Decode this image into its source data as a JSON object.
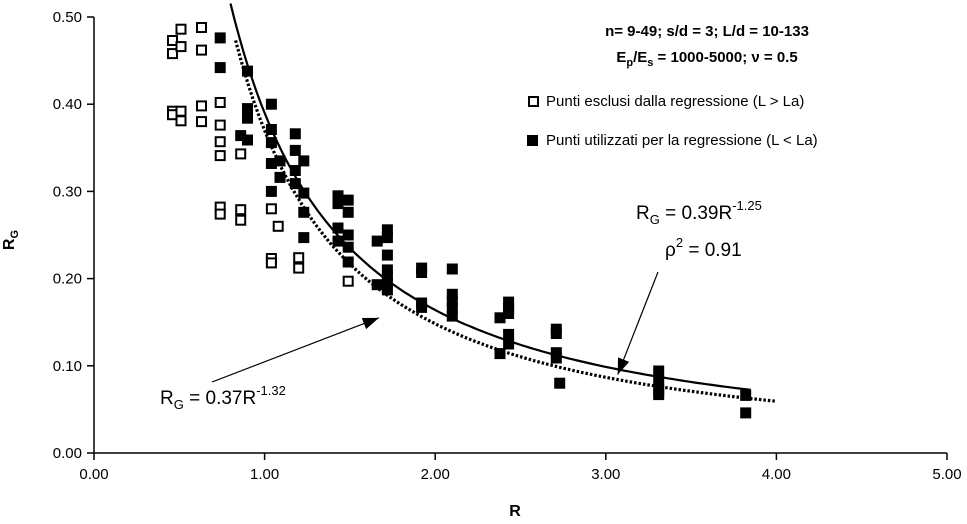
{
  "chart_data": {
    "type": "scatter",
    "title": "",
    "xlabel": "R",
    "ylabel": "R_G",
    "xlim": [
      0.0,
      5.0
    ],
    "ylim": [
      0.0,
      0.5
    ],
    "x_tick_labels": [
      "0.00",
      "1.00",
      "2.00",
      "3.00",
      "4.00",
      "5.00"
    ],
    "y_tick_labels": [
      "0.00",
      "0.10",
      "0.20",
      "0.30",
      "0.40",
      "0.50"
    ],
    "grid": false,
    "legend_position": "top-right",
    "annotation_params": "n= 9-49; s/d = 3; L/d = 10-133",
    "annotation_ratio": "E_p/E_s = 1000-5000; ν = 0.5",
    "series": [
      {
        "name": "Punti esclusi dalla regressione (L > La)",
        "marker": "open-square",
        "points": [
          [
            0.46,
            0.473
          ],
          [
            0.46,
            0.458
          ],
          [
            0.46,
            0.392
          ],
          [
            0.46,
            0.388
          ],
          [
            0.51,
            0.486
          ],
          [
            0.51,
            0.466
          ],
          [
            0.51,
            0.392
          ],
          [
            0.51,
            0.381
          ],
          [
            0.63,
            0.488
          ],
          [
            0.63,
            0.462
          ],
          [
            0.63,
            0.398
          ],
          [
            0.63,
            0.38
          ],
          [
            0.74,
            0.402
          ],
          [
            0.74,
            0.376
          ],
          [
            0.74,
            0.357
          ],
          [
            0.74,
            0.341
          ],
          [
            0.74,
            0.282
          ],
          [
            0.74,
            0.274
          ],
          [
            0.86,
            0.343
          ],
          [
            0.86,
            0.279
          ],
          [
            0.86,
            0.267
          ],
          [
            1.04,
            0.28
          ],
          [
            1.04,
            0.223
          ],
          [
            1.04,
            0.218
          ],
          [
            1.08,
            0.26
          ],
          [
            1.2,
            0.224
          ],
          [
            1.2,
            0.212
          ],
          [
            1.49,
            0.197
          ]
        ]
      },
      {
        "name": "Punti utilizzati per la regressione (L < La)",
        "marker": "filled-square",
        "points": [
          [
            0.74,
            0.476
          ],
          [
            0.74,
            0.442
          ],
          [
            0.9,
            0.438
          ],
          [
            0.9,
            0.395
          ],
          [
            0.9,
            0.384
          ],
          [
            0.9,
            0.359
          ],
          [
            0.86,
            0.364
          ],
          [
            1.04,
            0.4
          ],
          [
            1.04,
            0.371
          ],
          [
            1.04,
            0.356
          ],
          [
            1.04,
            0.332
          ],
          [
            1.04,
            0.3
          ],
          [
            1.09,
            0.335
          ],
          [
            1.09,
            0.316
          ],
          [
            1.18,
            0.366
          ],
          [
            1.18,
            0.347
          ],
          [
            1.18,
            0.324
          ],
          [
            1.18,
            0.309
          ],
          [
            1.23,
            0.335
          ],
          [
            1.23,
            0.298
          ],
          [
            1.23,
            0.276
          ],
          [
            1.23,
            0.247
          ],
          [
            1.43,
            0.295
          ],
          [
            1.43,
            0.286
          ],
          [
            1.43,
            0.258
          ],
          [
            1.43,
            0.243
          ],
          [
            1.49,
            0.29
          ],
          [
            1.49,
            0.276
          ],
          [
            1.49,
            0.25
          ],
          [
            1.49,
            0.236
          ],
          [
            1.49,
            0.219
          ],
          [
            1.66,
            0.243
          ],
          [
            1.66,
            0.193
          ],
          [
            1.72,
            0.256
          ],
          [
            1.72,
            0.247
          ],
          [
            1.72,
            0.227
          ],
          [
            1.72,
            0.21
          ],
          [
            1.72,
            0.203
          ],
          [
            1.72,
            0.195
          ],
          [
            1.72,
            0.187
          ],
          [
            1.92,
            0.212
          ],
          [
            1.92,
            0.207
          ],
          [
            1.92,
            0.172
          ],
          [
            1.92,
            0.167
          ],
          [
            2.1,
            0.211
          ],
          [
            2.1,
            0.182
          ],
          [
            2.1,
            0.174
          ],
          [
            2.1,
            0.166
          ],
          [
            2.1,
            0.157
          ],
          [
            2.38,
            0.155
          ],
          [
            2.38,
            0.114
          ],
          [
            2.43,
            0.173
          ],
          [
            2.43,
            0.166
          ],
          [
            2.43,
            0.16
          ],
          [
            2.43,
            0.136
          ],
          [
            2.43,
            0.125
          ],
          [
            2.71,
            0.142
          ],
          [
            2.71,
            0.137
          ],
          [
            2.71,
            0.115
          ],
          [
            2.71,
            0.109
          ],
          [
            2.73,
            0.08
          ],
          [
            3.31,
            0.094
          ],
          [
            3.31,
            0.082
          ],
          [
            3.31,
            0.072
          ],
          [
            3.31,
            0.067
          ],
          [
            3.82,
            0.066
          ],
          [
            3.82,
            0.046
          ]
        ]
      }
    ],
    "fits": [
      {
        "label_base": "R",
        "label_sub": "G",
        "label_eq": " = 0.39R",
        "label_exp": "-1.25",
        "r2_base": "ρ",
        "r2_exp": "2",
        "r2_eq": " = 0.91",
        "coef": 0.39,
        "exponent": -1.25,
        "x_range": [
          0.8,
          3.85
        ],
        "style": "solid",
        "arrow_tip": [
          3.07,
          0.09
        ]
      },
      {
        "label_base": "R",
        "label_sub": "G",
        "label_eq": " = 0.37R",
        "label_exp": "-1.32",
        "coef": 0.37,
        "exponent": -1.32,
        "x_range": [
          0.83,
          4.0
        ],
        "style": "dotted",
        "arrow_tip": [
          1.67,
          0.155
        ]
      }
    ]
  }
}
